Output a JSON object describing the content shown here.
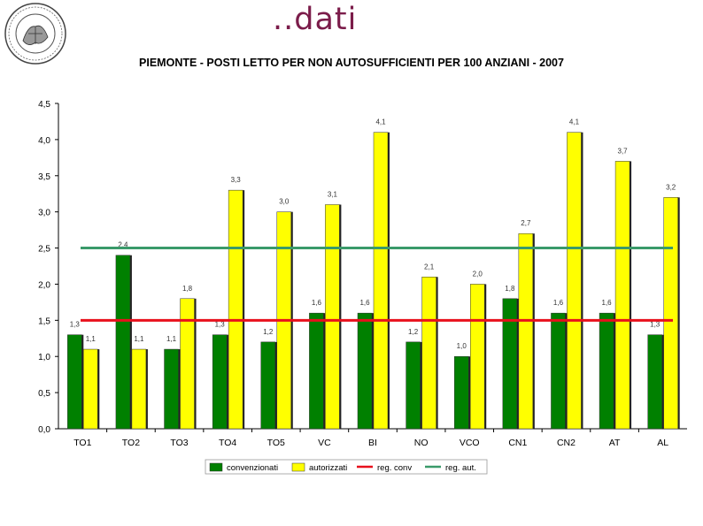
{
  "slide": {
    "title": "..dati"
  },
  "chart_data": {
    "type": "bar",
    "title": "PIEMONTE - POSTI LETTO PER NON AUTOSUFFICIENTI PER 100 ANZIANI - 2007",
    "categories": [
      "TO1",
      "TO2",
      "TO3",
      "TO4",
      "TO5",
      "VC",
      "BI",
      "NO",
      "VCO",
      "CN1",
      "CN2",
      "AT",
      "AL"
    ],
    "series": [
      {
        "name": "convenzionati",
        "color": "#008000",
        "values": [
          1.3,
          2.4,
          1.1,
          1.3,
          1.2,
          1.6,
          1.6,
          1.2,
          1.0,
          1.8,
          1.6,
          1.6,
          1.3
        ],
        "labels": [
          "1,3",
          "2,4",
          "1,1",
          "1,3",
          "1,2",
          "1,6",
          "1,6",
          "1,2",
          "1,0",
          "1,8",
          "1,6",
          "1,6",
          "1,3"
        ]
      },
      {
        "name": "autorizzati",
        "color": "#ffff00",
        "values": [
          1.1,
          1.1,
          1.8,
          3.3,
          3.0,
          3.1,
          4.1,
          2.1,
          2.0,
          2.7,
          4.1,
          3.7,
          3.2
        ],
        "labels": [
          "1,1",
          "1,1",
          "1,8",
          "3,3",
          "3,0",
          "3,1",
          "4,1",
          "2,1",
          "2,0",
          "2,7",
          "4,1",
          "3,7",
          "3,2"
        ]
      }
    ],
    "reference_lines": [
      {
        "name": "reg. conv",
        "value": 1.5,
        "color": "#e8101c"
      },
      {
        "name": "reg. aut.",
        "value": 2.5,
        "color": "#3a9a6a"
      }
    ],
    "ylim": [
      0,
      4.5
    ],
    "yticks": [
      0,
      0.5,
      1.0,
      1.5,
      2.0,
      2.5,
      3.0,
      3.5,
      4.0,
      4.5
    ],
    "ytick_labels": [
      "0,0",
      "0,5",
      "1,0",
      "1,5",
      "2,0",
      "2,5",
      "3,0",
      "3,5",
      "4,0",
      "4,5"
    ],
    "legend": {
      "placement": "bottom",
      "entries": [
        "convenzionati",
        "autorizzati",
        "reg. conv",
        "reg. aut."
      ]
    },
    "grid": false
  }
}
